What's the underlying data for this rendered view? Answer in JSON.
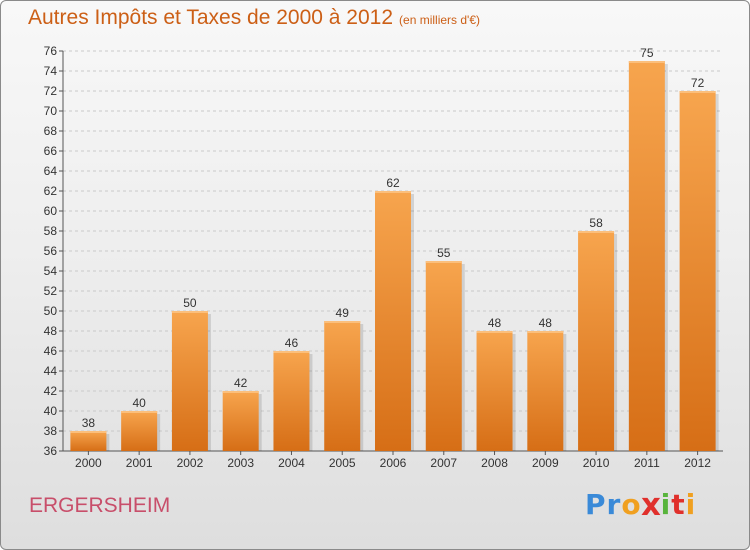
{
  "chart_data": {
    "type": "bar",
    "title": "Autres Impôts et Taxes de 2000 à 2012",
    "unit_note": "(en milliers d'€)",
    "categories": [
      "2000",
      "2001",
      "2002",
      "2003",
      "2004",
      "2005",
      "2006",
      "2007",
      "2008",
      "2009",
      "2010",
      "2011",
      "2012"
    ],
    "values": [
      38,
      40,
      50,
      42,
      46,
      49,
      62,
      55,
      48,
      48,
      58,
      75,
      72
    ],
    "ylim": [
      36,
      76
    ],
    "ytick_step": 2,
    "grid": true,
    "bar_color": "#f39a3c",
    "title_color": "#cc5f16"
  },
  "footer": {
    "commune": "ERGERSHEIM",
    "commune_color": "#c84e6a",
    "logo_letters": [
      "P",
      "r",
      "o",
      "x",
      "i",
      "t",
      "i"
    ],
    "logo_colors": [
      "#3a8ad8",
      "#3a8ad8",
      "#f0a020",
      "#e0302c",
      "#58b43c",
      "#e0302c",
      "#f0a020"
    ]
  }
}
